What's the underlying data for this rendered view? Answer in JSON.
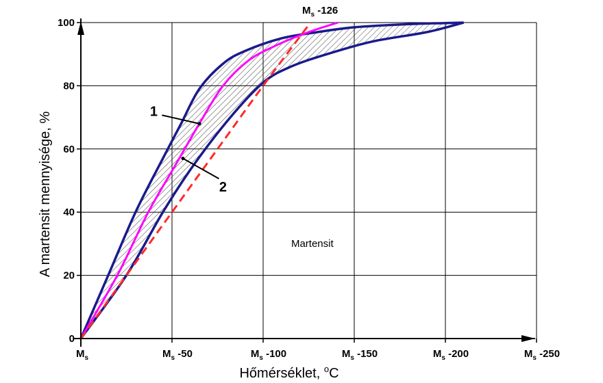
{
  "chart_data": {
    "type": "line",
    "xlabel": "Hőmérséklet,",
    "xlabel_unit": "o",
    "xlabel_unit_tail": "C",
    "ylabel": "A martensit  mennyisége,  %",
    "xlim": [
      0,
      -250
    ],
    "ylim": [
      0,
      100
    ],
    "grid": true,
    "x_ticks": [
      {
        "value": 0,
        "prefix": "M",
        "sub": "s",
        "suffix": ""
      },
      {
        "value": -50,
        "prefix": "M",
        "sub": "s",
        "suffix": " -50"
      },
      {
        "value": -100,
        "prefix": "M",
        "sub": "s",
        "suffix": " -100"
      },
      {
        "value": -150,
        "prefix": "M",
        "sub": "s",
        "suffix": " -150"
      },
      {
        "value": -200,
        "prefix": "M",
        "sub": "s",
        "suffix": " -200"
      },
      {
        "value": -250,
        "prefix": "M",
        "sub": "s",
        "suffix": " -250"
      }
    ],
    "y_ticks": [
      {
        "value": 0,
        "label": "0"
      },
      {
        "value": 20,
        "label": "20"
      },
      {
        "value": 40,
        "label": "40"
      },
      {
        "value": 60,
        "label": "60"
      },
      {
        "value": 80,
        "label": "80"
      },
      {
        "value": 100,
        "label": "100"
      }
    ],
    "top_annotation": {
      "prefix": "M",
      "sub": "s",
      "suffix": " -126",
      "x": -126
    },
    "region_label": {
      "text": "Martensit",
      "x": -127,
      "y": 29
    },
    "band_upper": {
      "color": "#1a1a8c",
      "points": [
        [
          0,
          0
        ],
        [
          -15,
          20
        ],
        [
          -30,
          40
        ],
        [
          -45,
          57
        ],
        [
          -55,
          68
        ],
        [
          -65,
          79
        ],
        [
          -78,
          87
        ],
        [
          -90,
          91
        ],
        [
          -110,
          95
        ],
        [
          -130,
          97
        ],
        [
          -150,
          98.5
        ],
        [
          -180,
          99.5
        ],
        [
          -210,
          100
        ]
      ]
    },
    "band_lower": {
      "color": "#1a1a8c",
      "points": [
        [
          0,
          0
        ],
        [
          -25,
          20
        ],
        [
          -45,
          40
        ],
        [
          -62,
          55
        ],
        [
          -82,
          70
        ],
        [
          -100,
          81
        ],
        [
          -115,
          86
        ],
        [
          -135,
          90
        ],
        [
          -160,
          94
        ],
        [
          -190,
          97
        ],
        [
          -210,
          100
        ]
      ]
    },
    "series": [
      {
        "name": "1",
        "color": "#ff00ff",
        "style": "solid",
        "points": [
          [
            0,
            0
          ],
          [
            -20,
            20
          ],
          [
            -37,
            40
          ],
          [
            -52,
            55
          ],
          [
            -65,
            68
          ],
          [
            -78,
            80
          ],
          [
            -92,
            88
          ],
          [
            -108,
            93
          ],
          [
            -125,
            97
          ],
          [
            -141,
            100
          ]
        ]
      },
      {
        "name": "2",
        "color": "#ff2a2a",
        "style": "dashed",
        "points": [
          [
            0,
            0
          ],
          [
            -25,
            20
          ],
          [
            -50,
            40
          ],
          [
            -75,
            60
          ],
          [
            -100,
            80
          ],
          [
            -126,
            100
          ]
        ]
      }
    ],
    "curve_labels": [
      {
        "text": "1",
        "tx": -40,
        "ty": 72,
        "px": -65,
        "py": 68
      },
      {
        "text": "2",
        "tx": -78,
        "ty": 48,
        "px": -56,
        "py": 57
      }
    ]
  }
}
